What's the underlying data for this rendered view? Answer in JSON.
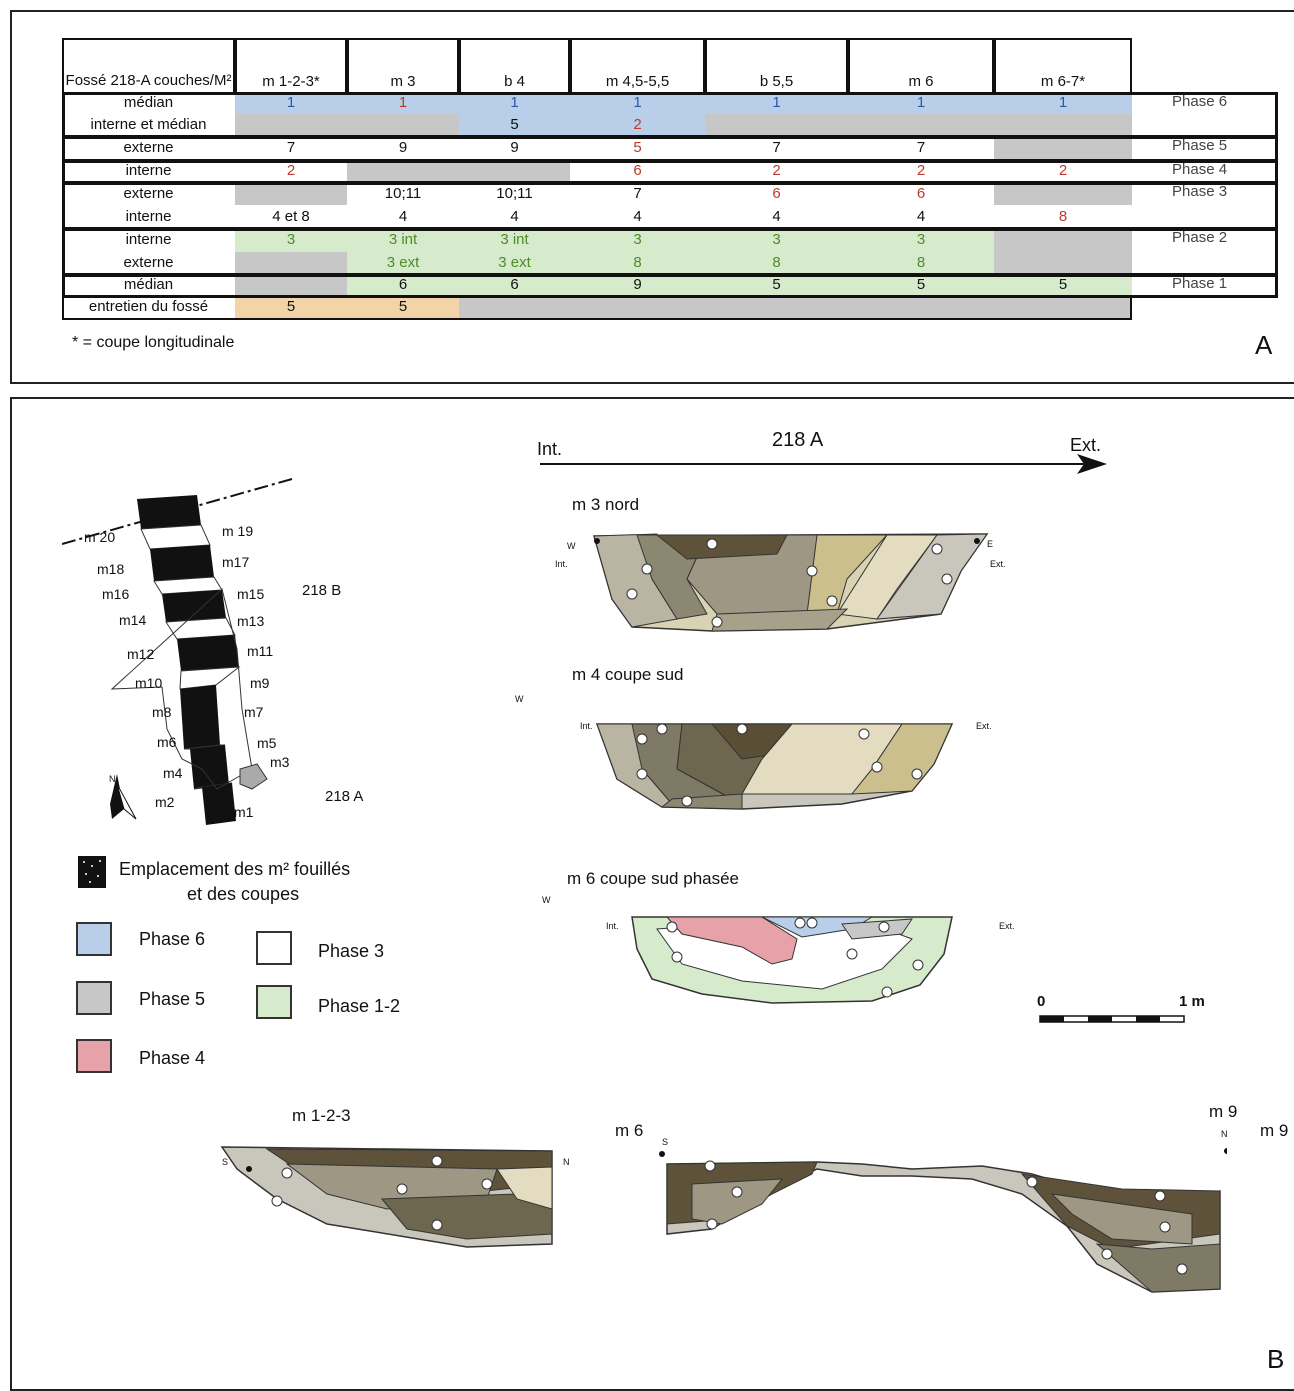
{
  "table": {
    "corner": "Fossé 218-A couches/M²",
    "columns": [
      "m 1-2-3*",
      "m 3",
      "b 4",
      "m 4,5-5,5",
      "b 5,5",
      "m 6",
      "m 6-7*"
    ],
    "rows": [
      {
        "label": "médian",
        "cells": [
          "1",
          "1",
          "1",
          "1",
          "1",
          "1",
          "1"
        ]
      },
      {
        "label": "interne et médian",
        "cells": [
          "",
          "",
          "5",
          "2",
          "",
          "",
          ""
        ]
      },
      {
        "label": "externe",
        "cells": [
          "7",
          "9",
          "9",
          "5",
          "7",
          "7",
          ""
        ]
      },
      {
        "label": "interne",
        "cells": [
          "2",
          "",
          "",
          "6",
          "2",
          "2",
          "2"
        ]
      },
      {
        "label": "externe",
        "cells": [
          "",
          "10;11",
          "10;11",
          "7",
          "6",
          "6",
          ""
        ]
      },
      {
        "label": "interne",
        "cells": [
          "4 et 8",
          "4",
          "4",
          "4",
          "4",
          "4",
          "8"
        ]
      },
      {
        "label": "interne",
        "cells": [
          "3",
          "3 int",
          "3 int",
          "3",
          "3",
          "3",
          ""
        ]
      },
      {
        "label": "externe",
        "cells": [
          "",
          "3 ext",
          "3 ext",
          "8",
          "8",
          "8",
          ""
        ]
      },
      {
        "label": "médian",
        "cells": [
          "",
          "6",
          "6",
          "9",
          "5",
          "5",
          "5"
        ]
      },
      {
        "label": "entretien du fossé",
        "cells": [
          "5",
          "5",
          "",
          "",
          "",
          "",
          ""
        ]
      }
    ],
    "phases": [
      "Phase 6",
      "Phase 5",
      "Phase 4",
      "Phase 3",
      "Phase 2",
      "Phase 1"
    ],
    "note": "* = coupe longitudinale"
  },
  "panel_a_letter": "A",
  "panel_b_letter": "B",
  "colors": {
    "phase6": "#b9cfe9",
    "phase5": "#c7c7c7",
    "phase4": "#e6a2a8",
    "phase3": "#ffffff",
    "phase12": "#d6ebcc",
    "entretien": "#f3d3a8",
    "red_text": "#c0392b",
    "green_text": "#4f8a2b",
    "blue_text": "#2a5aa8"
  },
  "sections": {
    "axis": {
      "left": "Int.",
      "title": "218 A",
      "right": "Ext."
    },
    "s1": {
      "title": "m 3 nord",
      "w": "W",
      "int": "Int.",
      "e": "E",
      "ext": "Ext."
    },
    "s2": {
      "title": "m 4 coupe sud",
      "w": "W",
      "int": "Int.",
      "ext": "Ext."
    },
    "s3": {
      "title": "m 6 coupe sud phasée",
      "w": "W",
      "int": "Int.",
      "ext": "Ext."
    },
    "s4": {
      "title": "m 1-2-3",
      "s": "S",
      "n": "N"
    },
    "s5": {
      "left": "m 6",
      "s": "S",
      "right": "m 9",
      "n": "N",
      "edge": "m 9"
    },
    "scale": {
      "zero": "0",
      "end": "1 m"
    }
  },
  "map": {
    "labels_left": [
      "m 20",
      "m18",
      "m16",
      "m14",
      "m12",
      "m10",
      "m8",
      "m6",
      "m4",
      "m2"
    ],
    "labels_right": [
      "m 19",
      "m17",
      "m15",
      "m13",
      "m11",
      "m9",
      "m7",
      "m5",
      "m3",
      "m1"
    ],
    "b218": "218 B",
    "a218": "218 A",
    "north": "N"
  },
  "legend": {
    "location_label_1": "Emplacement des m² fouillés",
    "location_label_2": "et des coupes",
    "items": [
      {
        "label": "Phase 6"
      },
      {
        "label": "Phase 5"
      },
      {
        "label": "Phase 4"
      },
      {
        "label": "Phase 3"
      },
      {
        "label": "Phase 1-2"
      }
    ]
  }
}
